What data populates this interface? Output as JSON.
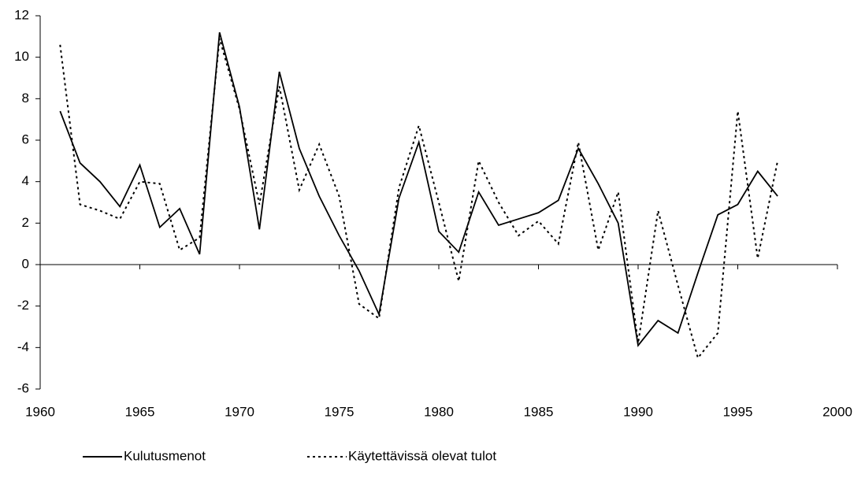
{
  "chart_data": {
    "type": "line",
    "x": [
      1961,
      1962,
      1963,
      1964,
      1965,
      1966,
      1967,
      1968,
      1969,
      1970,
      1971,
      1972,
      1973,
      1974,
      1975,
      1976,
      1977,
      1978,
      1979,
      1980,
      1981,
      1982,
      1983,
      1984,
      1985,
      1986,
      1987,
      1988,
      1989,
      1990,
      1991,
      1992,
      1993,
      1994,
      1995,
      1996,
      1997
    ],
    "series": [
      {
        "name": "Kulutusmenot",
        "color": "#000000",
        "dash": "solid",
        "values": [
          7.4,
          4.9,
          4.0,
          2.8,
          4.8,
          1.8,
          2.7,
          0.5,
          11.2,
          7.6,
          1.7,
          9.3,
          5.6,
          3.3,
          1.4,
          -0.3,
          -2.4,
          3.2,
          5.9,
          1.6,
          0.6,
          3.5,
          1.9,
          2.2,
          2.5,
          3.1,
          5.6,
          3.9,
          2.0,
          -3.9,
          -2.7,
          -3.3,
          -0.4,
          2.4,
          2.9,
          4.5,
          3.3
        ]
      },
      {
        "name": "Käytettävissä olevat tulot",
        "color": "#000000",
        "dash": "dotted",
        "values": [
          10.6,
          2.9,
          2.6,
          2.2,
          4.0,
          3.9,
          0.7,
          1.3,
          10.9,
          7.5,
          2.9,
          8.6,
          3.6,
          5.8,
          3.3,
          -1.9,
          -2.6,
          3.7,
          6.7,
          3.0,
          -0.8,
          5.0,
          3.0,
          1.4,
          2.1,
          1.0,
          5.9,
          0.7,
          3.5,
          -3.8,
          2.6,
          -1.0,
          -4.5,
          -3.3,
          7.4,
          0.3,
          5.0
        ]
      }
    ],
    "xlim": [
      1960,
      2000
    ],
    "xticks": [
      1960,
      1965,
      1970,
      1975,
      1980,
      1985,
      1990,
      1995,
      2000
    ],
    "ylim": [
      -6,
      12
    ],
    "yticks": [
      -6,
      -4,
      -2,
      0,
      2,
      4,
      6,
      8,
      10,
      12
    ],
    "grid": false,
    "legend": "bottom"
  }
}
